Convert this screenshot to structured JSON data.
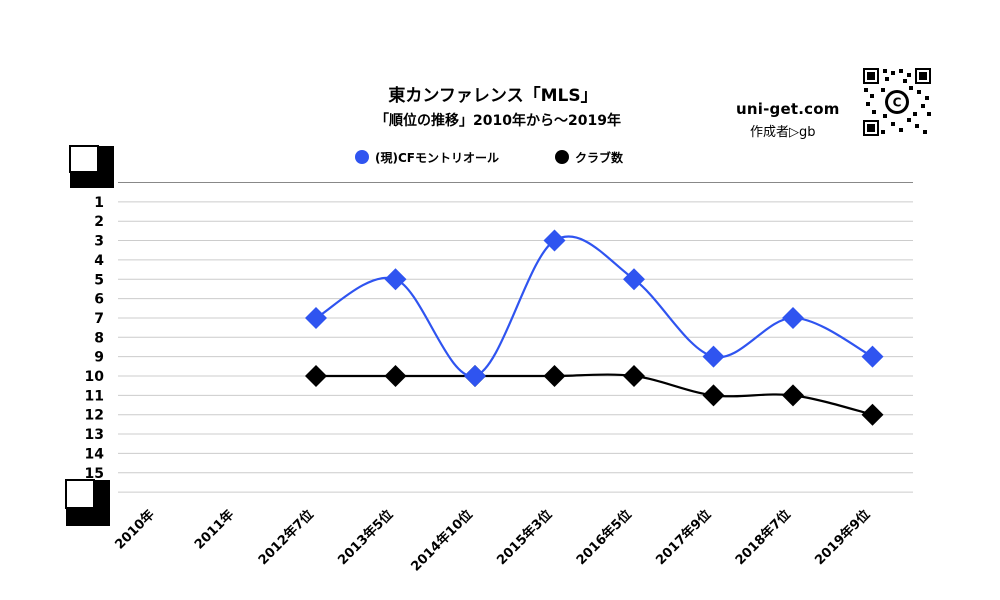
{
  "header": {
    "title": "東カンファレンス「MLS」",
    "subtitle": "「順位の推移」2010年から～2019年",
    "site": "uni-get.com",
    "author": "作成者▷gb"
  },
  "colors": {
    "rank_series": "#2f54f0",
    "clubs_series": "#000000",
    "grid": "#cccccc",
    "axis_text": "#000000"
  },
  "chart_data": {
    "type": "line",
    "title": "東カンファレンス「MLS」",
    "subtitle": "「順位の推移」2010年から～2019年",
    "categories": [
      "2010年",
      "2011年",
      "2012年7位",
      "2013年5位",
      "2014年10位",
      "2015年3位",
      "2016年5位",
      "2017年9位",
      "2018年7位",
      "2019年9位"
    ],
    "y_ticks": [
      "1",
      "2",
      "3",
      "4",
      "5",
      "6",
      "7",
      "8",
      "9",
      "10",
      "11",
      "12",
      "13",
      "14",
      "15"
    ],
    "ylim": [
      0,
      16
    ],
    "y_inverted": true,
    "grid": true,
    "legend_position": "top-center",
    "series": [
      {
        "name": "(現)CFモントリオール",
        "marker": "diamond",
        "color": "#2f54f0",
        "values": [
          null,
          null,
          7,
          5,
          10,
          3,
          5,
          9,
          7,
          9
        ]
      },
      {
        "name": "クラブ数",
        "marker": "diamond",
        "color": "#000000",
        "values": [
          null,
          null,
          10,
          10,
          10,
          10,
          10,
          11,
          11,
          12
        ]
      }
    ]
  }
}
